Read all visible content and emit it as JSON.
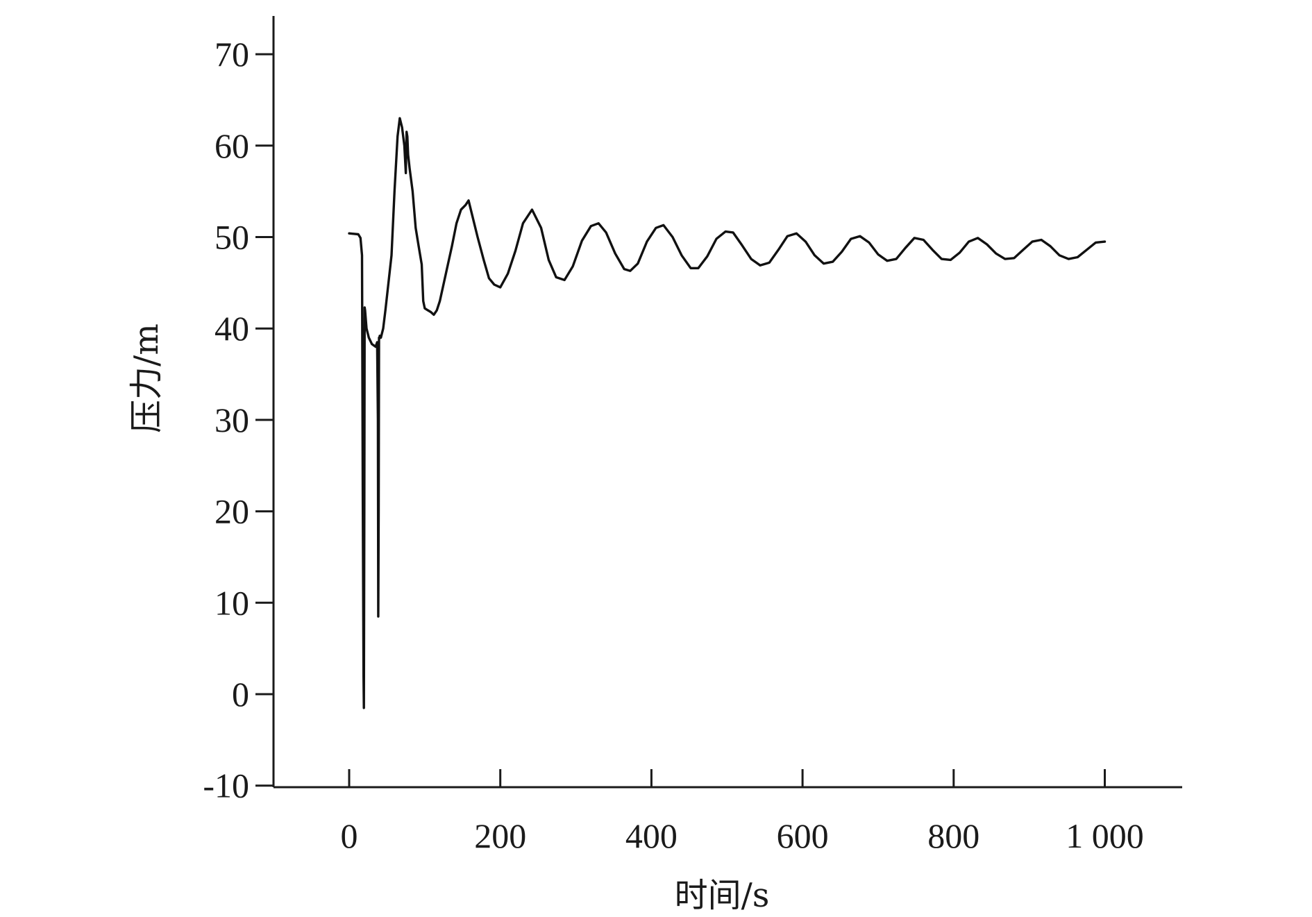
{
  "chart_data": {
    "type": "line",
    "title": "",
    "xlabel": "时间/s",
    "ylabel": "压力/m",
    "xlim": [
      -100,
      1100
    ],
    "ylim": [
      -10,
      75
    ],
    "xticks": [
      0,
      200,
      400,
      600,
      800,
      1000
    ],
    "xtick_labels": [
      "0",
      "200",
      "400",
      "600",
      "800",
      "1 000"
    ],
    "yticks": [
      -10,
      0,
      10,
      20,
      30,
      40,
      50,
      60,
      70
    ],
    "ytick_labels": [
      "-10",
      "0",
      "10",
      "20",
      "30",
      "40",
      "50",
      "60",
      "70"
    ],
    "grid": false,
    "legend": "none",
    "line_color": "#111111",
    "series": [
      {
        "x": [
          0,
          12,
          15,
          17,
          18,
          19,
          19.5,
          20,
          20.5,
          21,
          23,
          26,
          30,
          35,
          37,
          38,
          38.5,
          39,
          39.5,
          40,
          40.5,
          42,
          45,
          48,
          52,
          56,
          60,
          64,
          67,
          70,
          73,
          75,
          76,
          77,
          78,
          80,
          84,
          88,
          92,
          96,
          98,
          100,
          104,
          108,
          112,
          116,
          120,
          128,
          136,
          142,
          148,
          154,
          158,
          164,
          170,
          178,
          185,
          192,
          200,
          210,
          220,
          230,
          242,
          254,
          264,
          274,
          285,
          296,
          308,
          320,
          330,
          340,
          352,
          364,
          372,
          382,
          394,
          406,
          416,
          428,
          440,
          452,
          462,
          474,
          486,
          498,
          508,
          520,
          532,
          544,
          556,
          568,
          580,
          592,
          604,
          616,
          628,
          640,
          652,
          664,
          676,
          688,
          700,
          712,
          724,
          736,
          748,
          760,
          772,
          784,
          796,
          808,
          820,
          832,
          844,
          856,
          868,
          880,
          892,
          904,
          916,
          928,
          940,
          952,
          964,
          976,
          988,
          1000
        ],
        "y": [
          50.4,
          50.3,
          49.9,
          48.0,
          22.0,
          2.0,
          -1.5,
          20.0,
          42.3,
          42.0,
          40.0,
          39.0,
          38.3,
          38.0,
          38.5,
          30.0,
          8.5,
          20.0,
          39.0,
          38.9,
          39.2,
          39.0,
          40.0,
          42.0,
          45.0,
          48.0,
          55.0,
          61.0,
          63.0,
          62.0,
          60.0,
          57.0,
          61.5,
          61.0,
          59.0,
          57.5,
          55.0,
          51.0,
          49.0,
          47.0,
          43.0,
          42.2,
          42.0,
          41.8,
          41.5,
          42.0,
          43.0,
          46.0,
          49.0,
          51.5,
          53.0,
          53.5,
          54.0,
          52.0,
          50.0,
          47.5,
          45.5,
          44.8,
          44.5,
          46.0,
          48.5,
          51.5,
          53.0,
          51.0,
          47.5,
          45.6,
          45.3,
          46.8,
          49.6,
          51.2,
          51.5,
          50.5,
          48.2,
          46.5,
          46.3,
          47.1,
          49.5,
          51.0,
          51.3,
          50.0,
          48.0,
          46.6,
          46.6,
          47.9,
          49.8,
          50.6,
          50.5,
          49.1,
          47.6,
          46.9,
          47.2,
          48.6,
          50.1,
          50.4,
          49.5,
          48.0,
          47.1,
          47.3,
          48.4,
          49.8,
          50.1,
          49.4,
          48.1,
          47.4,
          47.6,
          48.8,
          49.9,
          49.7,
          48.6,
          47.6,
          47.5,
          48.3,
          49.5,
          49.9,
          49.2,
          48.2,
          47.6,
          47.7,
          48.6,
          49.5,
          49.7,
          49.0,
          48.0,
          47.6,
          47.8,
          48.6,
          49.4,
          49.5
        ]
      }
    ]
  }
}
